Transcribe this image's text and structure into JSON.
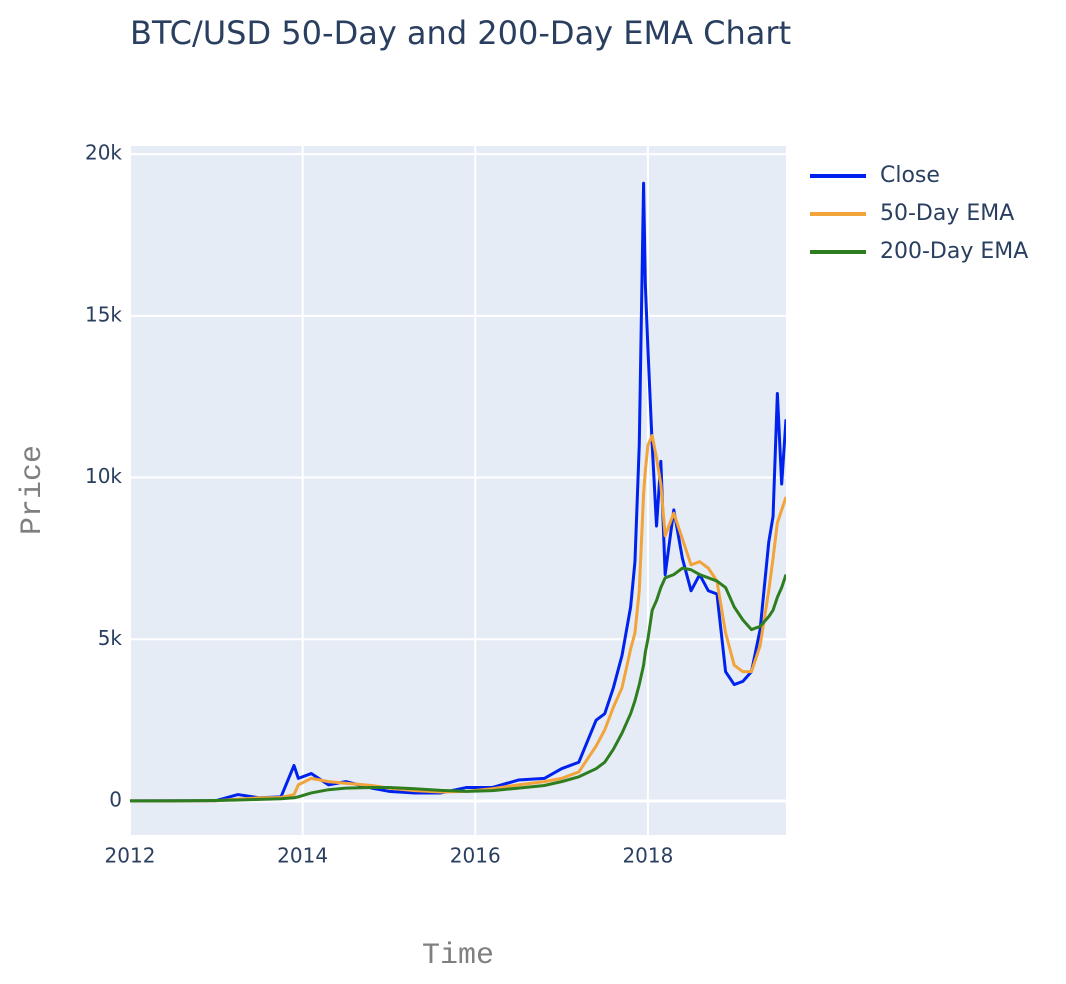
{
  "chart_data": {
    "type": "line",
    "title": "BTC/USD 50-Day and 200-Day EMA Chart",
    "x_label": "Time",
    "y_label": "Price",
    "x": [
      2012,
      2012.5,
      2013,
      2013.25,
      2013.5,
      2013.75,
      2013.9,
      2013.95,
      2014.1,
      2014.3,
      2014.5,
      2014.8,
      2015.0,
      2015.3,
      2015.6,
      2015.9,
      2016.2,
      2016.5,
      2016.8,
      2017.0,
      2017.2,
      2017.4,
      2017.5,
      2017.6,
      2017.7,
      2017.8,
      2017.85,
      2017.9,
      2017.95,
      2017.97,
      2018.0,
      2018.05,
      2018.1,
      2018.15,
      2018.2,
      2018.3,
      2018.4,
      2018.5,
      2018.6,
      2018.7,
      2018.8,
      2018.9,
      2019.0,
      2019.1,
      2019.2,
      2019.3,
      2019.4,
      2019.45,
      2019.5,
      2019.55,
      2019.6
    ],
    "series": [
      {
        "name": "Close",
        "color": "#0022ee",
        "values": [
          5,
          7,
          13,
          200,
          100,
          130,
          1100,
          700,
          850,
          500,
          600,
          400,
          300,
          250,
          250,
          420,
          420,
          650,
          700,
          1000,
          1200,
          2500,
          2700,
          3500,
          4500,
          6000,
          7400,
          11000,
          19100,
          16000,
          14000,
          11000,
          8500,
          10500,
          7000,
          9000,
          7500,
          6500,
          7000,
          6500,
          6400,
          4000,
          3600,
          3700,
          4000,
          5300,
          8000,
          8800,
          12600,
          9800,
          11800
        ]
      },
      {
        "name": "50-Day EMA",
        "color": "#f2a33a",
        "values": [
          5,
          6,
          10,
          60,
          100,
          110,
          200,
          500,
          700,
          600,
          550,
          480,
          400,
          320,
          280,
          300,
          380,
          500,
          600,
          700,
          900,
          1700,
          2200,
          2900,
          3500,
          4700,
          5200,
          6500,
          9500,
          10200,
          11000,
          11300,
          10600,
          9800,
          8200,
          8900,
          8100,
          7300,
          7400,
          7200,
          6800,
          5200,
          4200,
          4000,
          4000,
          4800,
          6500,
          7500,
          8600,
          9000,
          9400
        ]
      },
      {
        "name": "200-Day EMA",
        "color": "#2e7d1f",
        "values": [
          5,
          6,
          15,
          30,
          50,
          70,
          100,
          130,
          250,
          350,
          400,
          420,
          420,
          380,
          330,
          300,
          320,
          400,
          480,
          600,
          750,
          1000,
          1200,
          1600,
          2100,
          2700,
          3100,
          3600,
          4200,
          4600,
          5000,
          5900,
          6200,
          6600,
          6900,
          7000,
          7200,
          7150,
          7000,
          6900,
          6800,
          6600,
          6000,
          5600,
          5300,
          5400,
          5700,
          5900,
          6300,
          6600,
          7000
        ]
      }
    ],
    "xlim": [
      2012,
      2019.6
    ],
    "xticks": [
      2012,
      2014,
      2016,
      2018
    ],
    "ylim": [
      -1050,
      20250
    ],
    "yticks": [
      0,
      {
        "value": 5000,
        "label": "5k"
      },
      {
        "value": 10000,
        "label": "10k"
      },
      {
        "value": 15000,
        "label": "15k"
      },
      {
        "value": 20000,
        "label": "20k"
      }
    ],
    "grid": true,
    "legend": "outside-right"
  }
}
